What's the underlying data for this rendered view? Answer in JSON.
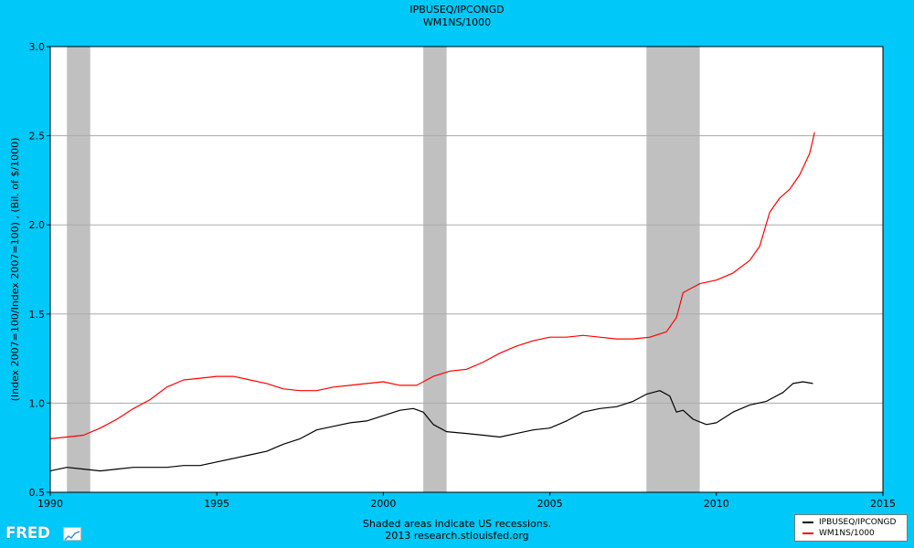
{
  "header": {
    "title_line1": "IPBUSEQ/IPCONGD",
    "title_line2": "WM1NS/1000"
  },
  "footer": {
    "line1": "Shaded areas indicate US recessions.",
    "line2": "2013 research.stlouisfed.org"
  },
  "logo": {
    "text": "FRED",
    "icon": "chart-sparkline-icon"
  },
  "legend": {
    "items": [
      {
        "label": "IPBUSEQ/IPCONGD",
        "color": "#000000"
      },
      {
        "label": "WM1NS/1000",
        "color": "#ff0000"
      }
    ]
  },
  "colors": {
    "background": "#00c8f8",
    "plot_background": "#ffffff",
    "recession_shading": "#c0c0c0",
    "gridline": "#aaaaaa"
  },
  "chart_data": {
    "type": "line",
    "title": "IPBUSEQ/IPCONGD\nWM1NS/1000",
    "xlabel": "",
    "ylabel": "(Index 2007=100/Index 2007=100) , (Bil. of $/1000)",
    "xlim": [
      1990,
      2015
    ],
    "ylim": [
      0.5,
      3.0
    ],
    "x_ticks": [
      "1990",
      "1995",
      "2000",
      "2005",
      "2010",
      "2015"
    ],
    "y_ticks": [
      "0.5",
      "1.0",
      "1.5",
      "2.0",
      "2.5",
      "3.0"
    ],
    "grid": "horizontal",
    "legend_position": "bottom-right",
    "recessions": [
      [
        1990.5,
        1991.2
      ],
      [
        2001.2,
        2001.9
      ],
      [
        2007.9,
        2009.5
      ]
    ],
    "series": [
      {
        "name": "IPBUSEQ/IPCONGD",
        "color": "#000000",
        "points": [
          [
            1990.0,
            0.62
          ],
          [
            1990.5,
            0.64
          ],
          [
            1991.0,
            0.63
          ],
          [
            1991.5,
            0.62
          ],
          [
            1992.0,
            0.63
          ],
          [
            1992.5,
            0.64
          ],
          [
            1993.0,
            0.64
          ],
          [
            1993.5,
            0.64
          ],
          [
            1994.0,
            0.65
          ],
          [
            1994.5,
            0.65
          ],
          [
            1995.0,
            0.67
          ],
          [
            1995.5,
            0.69
          ],
          [
            1996.0,
            0.71
          ],
          [
            1996.5,
            0.73
          ],
          [
            1997.0,
            0.77
          ],
          [
            1997.5,
            0.8
          ],
          [
            1998.0,
            0.85
          ],
          [
            1998.5,
            0.87
          ],
          [
            1999.0,
            0.89
          ],
          [
            1999.5,
            0.9
          ],
          [
            2000.0,
            0.93
          ],
          [
            2000.5,
            0.96
          ],
          [
            2000.9,
            0.97
          ],
          [
            2001.2,
            0.95
          ],
          [
            2001.5,
            0.88
          ],
          [
            2001.9,
            0.84
          ],
          [
            2002.5,
            0.83
          ],
          [
            2003.0,
            0.82
          ],
          [
            2003.5,
            0.81
          ],
          [
            2004.0,
            0.83
          ],
          [
            2004.5,
            0.85
          ],
          [
            2005.0,
            0.86
          ],
          [
            2005.5,
            0.9
          ],
          [
            2006.0,
            0.95
          ],
          [
            2006.5,
            0.97
          ],
          [
            2007.0,
            0.98
          ],
          [
            2007.5,
            1.01
          ],
          [
            2007.9,
            1.05
          ],
          [
            2008.3,
            1.07
          ],
          [
            2008.6,
            1.04
          ],
          [
            2008.8,
            0.95
          ],
          [
            2009.0,
            0.96
          ],
          [
            2009.3,
            0.91
          ],
          [
            2009.7,
            0.88
          ],
          [
            2010.0,
            0.89
          ],
          [
            2010.5,
            0.95
          ],
          [
            2011.0,
            0.99
          ],
          [
            2011.5,
            1.01
          ],
          [
            2012.0,
            1.06
          ],
          [
            2012.3,
            1.11
          ],
          [
            2012.6,
            1.12
          ],
          [
            2012.9,
            1.11
          ]
        ]
      },
      {
        "name": "WM1NS/1000",
        "color": "#ff0000",
        "points": [
          [
            1990.0,
            0.8
          ],
          [
            1990.5,
            0.81
          ],
          [
            1991.0,
            0.82
          ],
          [
            1991.5,
            0.86
          ],
          [
            1992.0,
            0.91
          ],
          [
            1992.5,
            0.97
          ],
          [
            1993.0,
            1.02
          ],
          [
            1993.5,
            1.09
          ],
          [
            1994.0,
            1.13
          ],
          [
            1994.5,
            1.14
          ],
          [
            1995.0,
            1.15
          ],
          [
            1995.5,
            1.15
          ],
          [
            1996.0,
            1.13
          ],
          [
            1996.5,
            1.11
          ],
          [
            1997.0,
            1.08
          ],
          [
            1997.5,
            1.07
          ],
          [
            1998.0,
            1.07
          ],
          [
            1998.5,
            1.09
          ],
          [
            1999.0,
            1.1
          ],
          [
            1999.5,
            1.11
          ],
          [
            2000.0,
            1.12
          ],
          [
            2000.5,
            1.1
          ],
          [
            2001.0,
            1.1
          ],
          [
            2001.5,
            1.15
          ],
          [
            2002.0,
            1.18
          ],
          [
            2002.5,
            1.19
          ],
          [
            2003.0,
            1.23
          ],
          [
            2003.5,
            1.28
          ],
          [
            2004.0,
            1.32
          ],
          [
            2004.5,
            1.35
          ],
          [
            2005.0,
            1.37
          ],
          [
            2005.5,
            1.37
          ],
          [
            2006.0,
            1.38
          ],
          [
            2006.5,
            1.37
          ],
          [
            2007.0,
            1.36
          ],
          [
            2007.5,
            1.36
          ],
          [
            2008.0,
            1.37
          ],
          [
            2008.5,
            1.4
          ],
          [
            2008.8,
            1.48
          ],
          [
            2009.0,
            1.62
          ],
          [
            2009.5,
            1.67
          ],
          [
            2010.0,
            1.69
          ],
          [
            2010.5,
            1.73
          ],
          [
            2011.0,
            1.8
          ],
          [
            2011.3,
            1.88
          ],
          [
            2011.6,
            2.07
          ],
          [
            2011.9,
            2.15
          ],
          [
            2012.2,
            2.2
          ],
          [
            2012.5,
            2.28
          ],
          [
            2012.8,
            2.4
          ],
          [
            2012.95,
            2.52
          ]
        ]
      }
    ]
  }
}
